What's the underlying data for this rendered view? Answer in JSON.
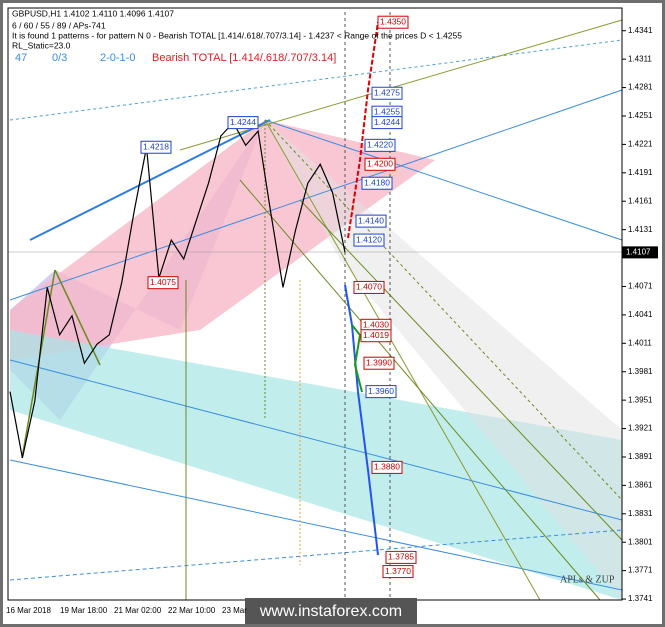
{
  "chart_data": {
    "type": "line",
    "title": "GBPUSD,H1  1.4102 1.4110 1.4096 1.4107",
    "subtitle": "6 / 60 / 55 / 89 / APs-741",
    "pattern_text": "It is found 1 patterns  -  for pattern N 0 - Bearish TOTAL [1.414/.618/.707/3.14] - 1.4237 < Range of the prices D < 1.4255",
    "rl_static": "RL_Static=23.0",
    "status": [
      "47",
      "0/3",
      "2-0-1-0"
    ],
    "pattern_name": "Bearish TOTAL [1.414/.618/.707/3.14]",
    "x_labels": [
      "16 Mar 2018",
      "19 Mar 18:00",
      "21 Mar 02:00",
      "22 Mar 10:00",
      "23 Mar"
    ],
    "series": [
      {
        "name": "GBPUSD",
        "color": "#000000",
        "values": [
          1.396,
          1.389,
          1.395,
          1.407,
          1.402,
          1.404,
          1.399,
          1.401,
          1.402,
          1.4075,
          1.415,
          1.4218,
          1.408,
          1.412,
          1.41,
          1.414,
          1.418,
          1.423,
          1.4244,
          1.422,
          1.4235,
          1.415,
          1.407,
          1.413,
          1.418,
          1.42,
          1.417,
          1.4107
        ]
      }
    ],
    "current_price": {
      "value": 1.4107,
      "label": "1.4107"
    },
    "annotations": [
      {
        "value": 1.435,
        "label": "1.4350",
        "color": "#d00000"
      },
      {
        "value": 1.4275,
        "label": "1.4275",
        "color": "#1e40d0"
      },
      {
        "value": 1.4255,
        "label": "1.4255",
        "color": "#1e40d0"
      },
      {
        "value": 1.4244,
        "label": "1.4244",
        "color": "#1e40d0"
      },
      {
        "value": 1.4244,
        "label": "1.4244",
        "color": "#1e40d0"
      },
      {
        "value": 1.4218,
        "label": "1.4218",
        "color": "#1e40d0"
      },
      {
        "value": 1.422,
        "label": "1.4220",
        "color": "#1e40d0"
      },
      {
        "value": 1.42,
        "label": "1.4200",
        "color": "#d00000"
      },
      {
        "value": 1.418,
        "label": "1.4180",
        "color": "#1e40d0"
      },
      {
        "value": 1.414,
        "label": "1.4140",
        "color": "#1e40d0"
      },
      {
        "value": 1.412,
        "label": "1.4120",
        "color": "#1e40d0"
      },
      {
        "value": 1.4075,
        "label": "1.4075",
        "color": "#d00000"
      },
      {
        "value": 1.407,
        "label": "1.4070",
        "color": "#d00000"
      },
      {
        "value": 1.403,
        "label": "1.4030",
        "color": "#d00000"
      },
      {
        "value": 1.4019,
        "label": "1.4019",
        "color": "#d00000"
      },
      {
        "value": 1.399,
        "label": "1.3990",
        "color": "#d00000"
      },
      {
        "value": 1.396,
        "label": "1.3960",
        "color": "#1e40d0"
      },
      {
        "value": 1.388,
        "label": "1.3880",
        "color": "#d00000"
      },
      {
        "value": 1.377,
        "label": "1.3770",
        "color": "#d00000"
      },
      {
        "value": 1.3785,
        "label": "1.3785",
        "color": "#d00000"
      }
    ],
    "ylim": [
      1.374,
      1.4365
    ],
    "yticks": [
      1.4341,
      1.4311,
      1.4281,
      1.4251,
      1.4221,
      1.4191,
      1.4161,
      1.4131,
      1.4071,
      1.4041,
      1.4011,
      1.3981,
      1.3951,
      1.3921,
      1.3891,
      1.3861,
      1.3831,
      1.3801,
      1.3771,
      1.3741
    ],
    "brand": "APLs & ZUP",
    "watermark": "www.instaforex.com"
  }
}
